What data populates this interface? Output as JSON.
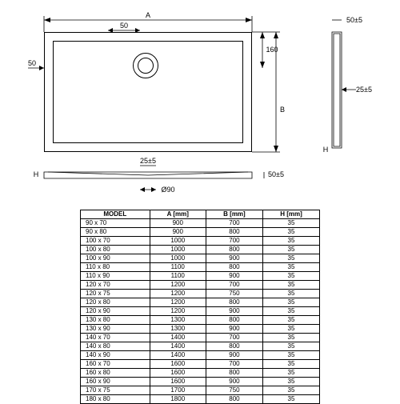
{
  "drawing": {
    "dims": {
      "A": "A",
      "B": "B",
      "H": "H",
      "top50_1": "50",
      "top50_2": "50",
      "d160": "160",
      "d25": "25±5",
      "d50_5": "50±5",
      "d50_5b": "50±5",
      "d90": "Ø90",
      "H2": "H"
    },
    "stroke": "#000000",
    "background": "#ffffff"
  },
  "table": {
    "headers": [
      "MODEL",
      "A [mm]",
      "B [mm]",
      "H [mm]"
    ],
    "rows": [
      [
        "90 x 70",
        "900",
        "700",
        "35"
      ],
      [
        "90 x 80",
        "900",
        "800",
        "35"
      ],
      [
        "100 x 70",
        "1000",
        "700",
        "35"
      ],
      [
        "100 x 80",
        "1000",
        "800",
        "35"
      ],
      [
        "100 x 90",
        "1000",
        "900",
        "35"
      ],
      [
        "110 x 80",
        "1100",
        "800",
        "35"
      ],
      [
        "110 x 90",
        "1100",
        "900",
        "35"
      ],
      [
        "120 x 70",
        "1200",
        "700",
        "35"
      ],
      [
        "120 x 75",
        "1200",
        "750",
        "35"
      ],
      [
        "120 x 80",
        "1200",
        "800",
        "35"
      ],
      [
        "120 x 90",
        "1200",
        "900",
        "35"
      ],
      [
        "130 x 80",
        "1300",
        "800",
        "35"
      ],
      [
        "130 x 90",
        "1300",
        "900",
        "35"
      ],
      [
        "140 x 70",
        "1400",
        "700",
        "35"
      ],
      [
        "140 x 80",
        "1400",
        "800",
        "35"
      ],
      [
        "140 x 90",
        "1400",
        "900",
        "35"
      ],
      [
        "160 x 70",
        "1600",
        "700",
        "35"
      ],
      [
        "160 x 80",
        "1600",
        "800",
        "35"
      ],
      [
        "160 x 90",
        "1600",
        "900",
        "35"
      ],
      [
        "170 x 75",
        "1700",
        "750",
        "35"
      ],
      [
        "180 x 80",
        "1800",
        "800",
        "35"
      ]
    ]
  }
}
